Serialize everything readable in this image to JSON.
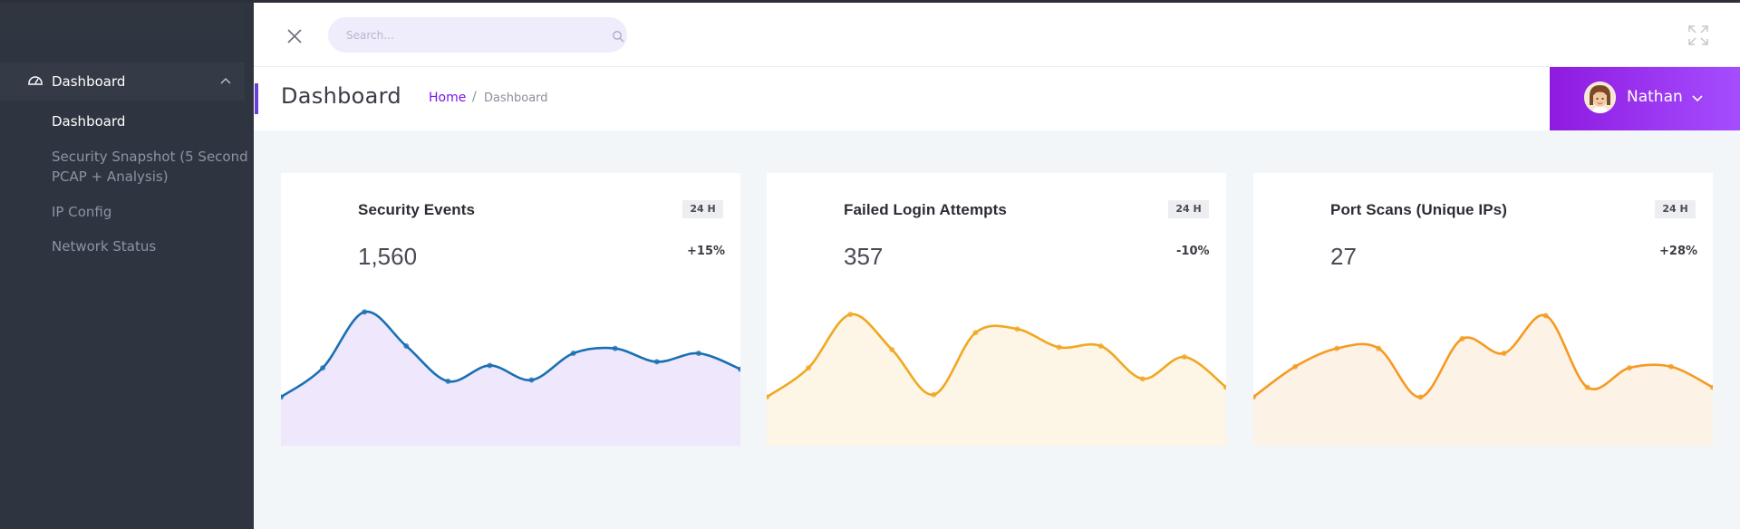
{
  "sidebar": {
    "parent": {
      "label": "Dashboard",
      "icon": "dashboard-gauge-icon"
    },
    "items": [
      {
        "label": "Dashboard",
        "active": true
      },
      {
        "label": "Security Snapshot (5 Second PCAP + Analysis)",
        "active": false
      },
      {
        "label": "IP Config",
        "active": false
      },
      {
        "label": "Network Status",
        "active": false
      }
    ]
  },
  "topbar": {
    "search_placeholder": "Search...",
    "close_icon": "close-icon",
    "search_icon": "search-icon",
    "expand_icon": "fullscreen-expand-icon"
  },
  "header": {
    "title": "Dashboard",
    "breadcrumb_home": "Home",
    "breadcrumb_sep": "/",
    "breadcrumb_current": "Dashboard",
    "user_name": "Nathan"
  },
  "colors": {
    "accent": "#7a16e8",
    "sidebar_bg": "#2e3440",
    "blue_line": "#1a6fb3",
    "blue_fill": "#efe8fc",
    "amber_line": "#f0a820",
    "amber_fill": "#fdf5e6",
    "orange_line": "#f59a22",
    "orange_fill": "#fdf2e6"
  },
  "cards": [
    {
      "title": "Security Events",
      "value": "1,560",
      "badge": "24 H",
      "change": "+15%",
      "line_color": "#1a6fb3",
      "fill_color": "#efe8fc",
      "series": [
        4,
        6.4,
        11,
        8.2,
        5.3,
        6.6,
        5.4,
        7.6,
        8,
        6.9,
        7.6,
        6.3
      ]
    },
    {
      "title": "Failed Login Attempts",
      "value": "357",
      "badge": "24 H",
      "change": "-10%",
      "line_color": "#f0a820",
      "fill_color": "#fdf5e6",
      "series": [
        4,
        6.4,
        10.8,
        7.9,
        4.2,
        9.3,
        9.6,
        8.1,
        8.2,
        5.5,
        7.3,
        4.8
      ]
    },
    {
      "title": "Port Scans (Unique IPs)",
      "value": "27",
      "badge": "24 H",
      "change": "+28%",
      "line_color": "#f59a22",
      "fill_color": "#fdf2e6",
      "series": [
        4,
        6.5,
        8.0,
        8.0,
        4.0,
        8.8,
        7.6,
        10.7,
        4.8,
        6.4,
        6.5,
        4.8
      ]
    }
  ]
}
